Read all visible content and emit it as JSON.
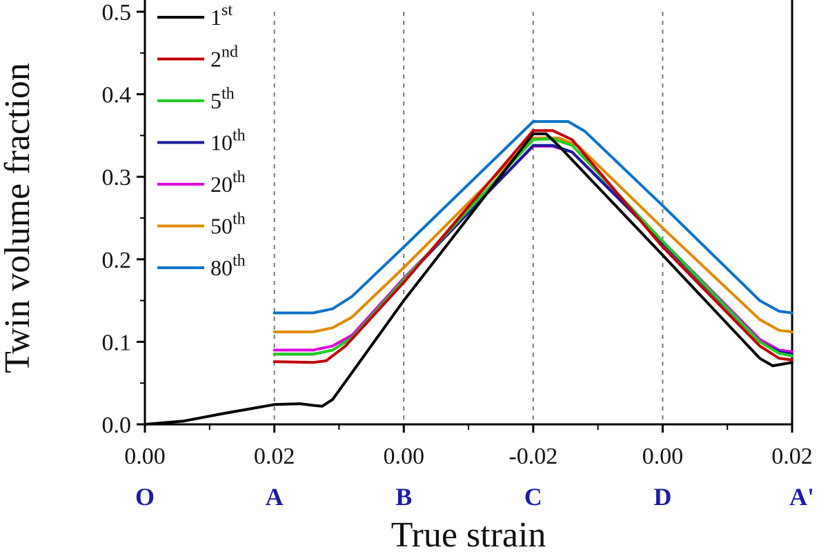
{
  "chart_data": {
    "type": "line",
    "xlabel": "True strain",
    "ylabel": "Twin volume fraction",
    "ylim": [
      0,
      0.5
    ],
    "yticks": [
      "0.0",
      "0.1",
      "0.2",
      "0.3",
      "0.4",
      "0.5"
    ],
    "x_axis_note": "x values are positions along the loading path, one unit per labelled point O, A, B, C, D, A'",
    "xticks": [
      "0.00",
      "0.02",
      "0.00",
      "-0.02",
      "0.00",
      "0.02"
    ],
    "path_points": [
      "O",
      "A",
      "B",
      "C",
      "D",
      "A'"
    ],
    "path_point_color": "#1c1ca8",
    "vertical_dashed_lines_at": [
      "A",
      "B",
      "C",
      "D"
    ],
    "legend_position": "top-left",
    "series": [
      {
        "name": "1",
        "sup": "st",
        "color": "#000000",
        "points": [
          [
            0,
            0
          ],
          [
            0.3,
            0.004
          ],
          [
            0.6,
            0.013
          ],
          [
            1,
            0.024
          ],
          [
            1.2,
            0.025
          ],
          [
            1.3,
            0.023
          ],
          [
            1.37,
            0.022
          ],
          [
            1.45,
            0.03
          ],
          [
            2,
            0.15
          ],
          [
            3,
            0.352
          ],
          [
            3.1,
            0.352
          ],
          [
            3.2,
            0.337
          ],
          [
            4,
            0.205
          ],
          [
            4.75,
            0.08
          ],
          [
            4.85,
            0.071
          ],
          [
            5,
            0.075
          ]
        ]
      },
      {
        "name": "2",
        "sup": "nd",
        "color": "#c00000",
        "points": [
          [
            1,
            0.076
          ],
          [
            1.3,
            0.075
          ],
          [
            1.4,
            0.077
          ],
          [
            1.55,
            0.095
          ],
          [
            2,
            0.172
          ],
          [
            3,
            0.356
          ],
          [
            3.15,
            0.356
          ],
          [
            3.3,
            0.345
          ],
          [
            4,
            0.215
          ],
          [
            4.75,
            0.095
          ],
          [
            4.9,
            0.08
          ],
          [
            5,
            0.078
          ]
        ]
      },
      {
        "name": "5",
        "sup": "th",
        "color": "#22cc22",
        "points": [
          [
            1,
            0.085
          ],
          [
            1.3,
            0.085
          ],
          [
            1.45,
            0.09
          ],
          [
            1.6,
            0.105
          ],
          [
            2,
            0.175
          ],
          [
            3,
            0.345
          ],
          [
            3.15,
            0.346
          ],
          [
            3.3,
            0.338
          ],
          [
            4,
            0.222
          ],
          [
            4.75,
            0.1
          ],
          [
            4.9,
            0.086
          ],
          [
            5,
            0.083
          ]
        ]
      },
      {
        "name": "10",
        "sup": "th",
        "color": "#1a1a9a",
        "points": [
          [
            1,
            0.085
          ],
          [
            1.3,
            0.085
          ],
          [
            1.45,
            0.09
          ],
          [
            1.6,
            0.105
          ],
          [
            2,
            0.175
          ],
          [
            3,
            0.338
          ],
          [
            3.15,
            0.338
          ],
          [
            3.3,
            0.33
          ],
          [
            4,
            0.22
          ],
          [
            4.75,
            0.1
          ],
          [
            4.9,
            0.088
          ],
          [
            5,
            0.085
          ]
        ]
      },
      {
        "name": "20",
        "sup": "th",
        "color": "#dd00dd",
        "points": [
          [
            1,
            0.09
          ],
          [
            1.3,
            0.09
          ],
          [
            1.45,
            0.095
          ],
          [
            1.6,
            0.108
          ],
          [
            2,
            0.177
          ],
          [
            3,
            0.337
          ],
          [
            3.15,
            0.337
          ],
          [
            3.3,
            0.33
          ],
          [
            4,
            0.222
          ],
          [
            4.75,
            0.103
          ],
          [
            4.9,
            0.09
          ],
          [
            5,
            0.088
          ]
        ]
      },
      {
        "name": "50",
        "sup": "th",
        "color": "#e08a00",
        "points": [
          [
            1,
            0.112
          ],
          [
            1.3,
            0.112
          ],
          [
            1.45,
            0.117
          ],
          [
            1.6,
            0.13
          ],
          [
            2,
            0.19
          ],
          [
            3,
            0.347
          ],
          [
            3.2,
            0.347
          ],
          [
            3.35,
            0.337
          ],
          [
            4,
            0.238
          ],
          [
            4.75,
            0.127
          ],
          [
            4.9,
            0.114
          ],
          [
            5,
            0.112
          ]
        ]
      },
      {
        "name": "80",
        "sup": "th",
        "color": "#0a73c8",
        "points": [
          [
            1,
            0.135
          ],
          [
            1.3,
            0.135
          ],
          [
            1.45,
            0.14
          ],
          [
            1.6,
            0.155
          ],
          [
            2,
            0.215
          ],
          [
            3,
            0.367
          ],
          [
            3.27,
            0.367
          ],
          [
            3.4,
            0.355
          ],
          [
            4,
            0.265
          ],
          [
            4.75,
            0.15
          ],
          [
            4.9,
            0.137
          ],
          [
            5,
            0.135
          ]
        ]
      }
    ]
  }
}
